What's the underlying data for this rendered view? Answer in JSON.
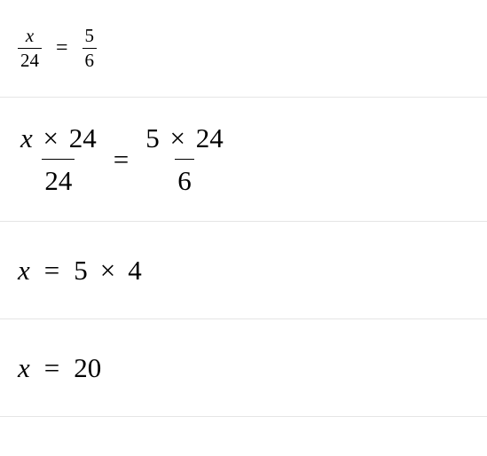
{
  "steps": {
    "s1": {
      "left_num": "x",
      "left_den": "24",
      "right_num": "5",
      "right_den": "6",
      "fontsize_pt": 21,
      "eq_fontsize_pt": 24
    },
    "s2": {
      "left_num_a": "x",
      "left_num_op": "×",
      "left_num_b": "24",
      "left_den": "24",
      "right_num_a": "5",
      "right_num_op": "×",
      "right_num_b": "24",
      "right_den": "6",
      "fontsize_pt": 31
    },
    "s3": {
      "var": "x",
      "eq": "=",
      "a": "5",
      "op": "×",
      "b": "4",
      "fontsize_pt": 31
    },
    "s4": {
      "var": "x",
      "eq": "=",
      "val": "20",
      "fontsize_pt": 31
    }
  },
  "style": {
    "text_color": "#000000",
    "background_color": "#ffffff",
    "divider_color": "#e5e5e5",
    "font_family": "Times New Roman"
  }
}
